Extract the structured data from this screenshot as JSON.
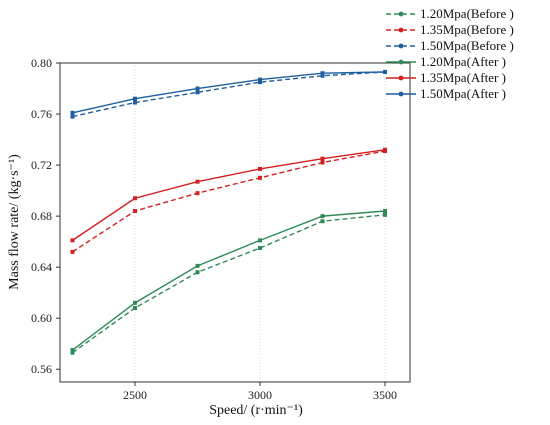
{
  "chart_data": {
    "type": "line",
    "xlabel": "Speed/ (r·min⁻¹)",
    "ylabel": "Mass flow rate/ (kg·s⁻¹)",
    "xlim": [
      2200,
      3600
    ],
    "ylim": [
      0.55,
      0.8
    ],
    "x_ticks": [
      2500,
      3000,
      3500
    ],
    "y_ticks": [
      0.56,
      0.6,
      0.64,
      0.68,
      0.72,
      0.76,
      0.8
    ],
    "x_tick_labels": [
      "2500",
      "3000",
      "3500"
    ],
    "y_tick_labels": [
      "0.56",
      "0.60",
      "0.64",
      "0.68",
      "0.72",
      "0.76",
      "0.80"
    ],
    "grid": "vertical",
    "legend_position": "top-right, outside plot",
    "x": [
      2250,
      2500,
      2750,
      3000,
      3250,
      3500
    ],
    "series": [
      {
        "name": "1.20Mpa(Before )",
        "color": "#2e8b57",
        "dashed": true,
        "values": [
          0.573,
          0.608,
          0.636,
          0.655,
          0.676,
          0.681
        ]
      },
      {
        "name": "1.35Mpa(Before )",
        "color": "#d42020",
        "dashed": true,
        "values": [
          0.652,
          0.684,
          0.698,
          0.71,
          0.722,
          0.731
        ]
      },
      {
        "name": "1.50Mpa(Before )",
        "color": "#1f5fa0",
        "dashed": true,
        "values": [
          0.758,
          0.769,
          0.777,
          0.785,
          0.79,
          0.793
        ]
      },
      {
        "name": "1.20Mpa(After )",
        "color": "#2e8b57",
        "dashed": false,
        "values": [
          0.575,
          0.612,
          0.641,
          0.661,
          0.68,
          0.684
        ]
      },
      {
        "name": "1.35Mpa(After )",
        "color": "#d42020",
        "dashed": false,
        "values": [
          0.661,
          0.694,
          0.707,
          0.717,
          0.725,
          0.732
        ]
      },
      {
        "name": "1.50Mpa(After )",
        "color": "#1f5fa0",
        "dashed": false,
        "values": [
          0.761,
          0.772,
          0.78,
          0.787,
          0.792,
          0.793
        ]
      }
    ]
  }
}
